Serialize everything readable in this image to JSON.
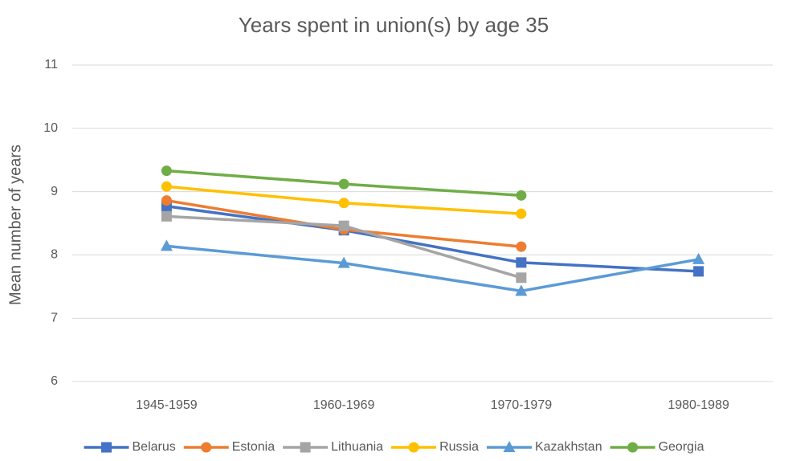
{
  "chart_data": {
    "type": "line",
    "title": "Years spent in union(s) by age 35",
    "y_label": "Mean number of years",
    "categories": [
      "1945-1959",
      "1960-1969",
      "1970-1979",
      "1980-1989"
    ],
    "series": [
      {
        "name": "Belarus",
        "color": "#4472c4",
        "marker": "square",
        "values": [
          8.77,
          8.39,
          7.88,
          7.74
        ]
      },
      {
        "name": "Estonia",
        "color": "#ed7d31",
        "marker": "circle",
        "values": [
          8.86,
          8.4,
          8.13,
          null
        ]
      },
      {
        "name": "Lithuania",
        "color": "#a5a5a5",
        "marker": "square",
        "values": [
          8.61,
          8.46,
          7.64,
          null
        ]
      },
      {
        "name": "Russia",
        "color": "#ffc000",
        "marker": "circle",
        "values": [
          9.08,
          8.82,
          8.65,
          null
        ]
      },
      {
        "name": "Kazakhstan",
        "color": "#5b9bd5",
        "marker": "triangle",
        "values": [
          8.14,
          7.87,
          7.43,
          7.93
        ]
      },
      {
        "name": "Georgia",
        "color": "#70ad47",
        "marker": "circle",
        "values": [
          9.33,
          9.12,
          8.94,
          null
        ]
      }
    ],
    "ylim": [
      6,
      11
    ],
    "yticks": [
      6,
      7,
      8,
      9,
      10,
      11
    ],
    "grid": true,
    "legend": "bottom"
  }
}
